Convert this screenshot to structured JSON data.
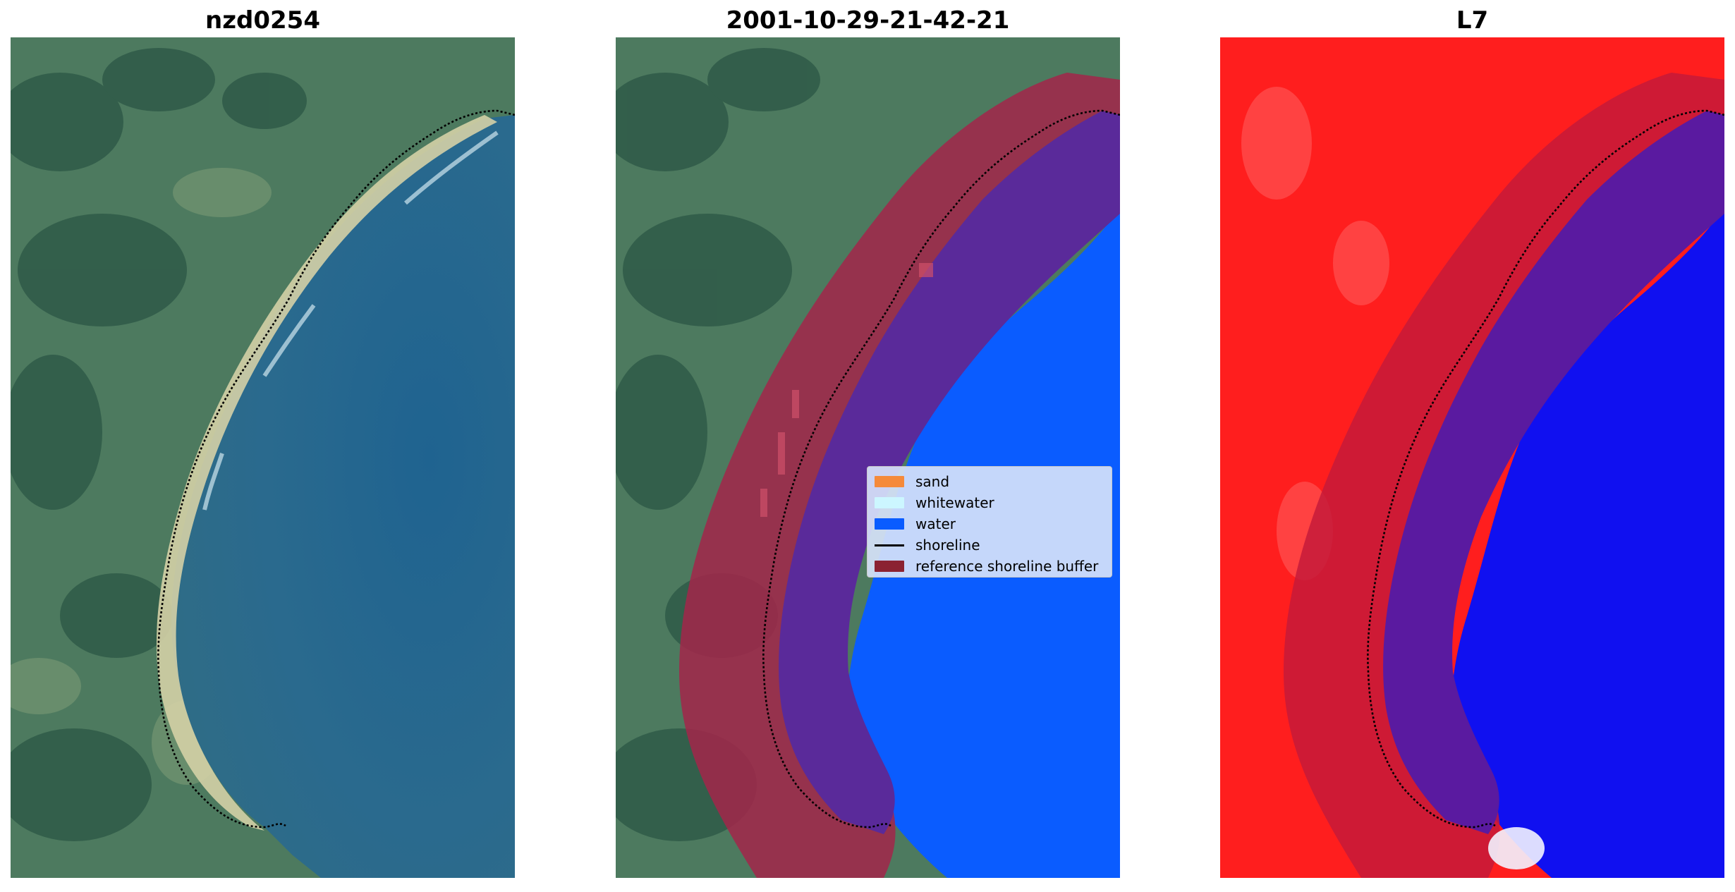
{
  "panels": [
    {
      "title": "nzd0254"
    },
    {
      "title": "2001-10-29-21-42-21"
    },
    {
      "title": "L7"
    }
  ],
  "legend": {
    "items": [
      {
        "label": "sand",
        "color": "#f58a3a",
        "kind": "patch"
      },
      {
        "label": "whitewater",
        "color": "#ccf6ff",
        "kind": "patch"
      },
      {
        "label": "water",
        "color": "#0a5cff",
        "kind": "patch"
      },
      {
        "label": "shoreline",
        "color": "#000000",
        "kind": "line"
      },
      {
        "label": "reference shoreline buffer",
        "color": "#8b2232",
        "kind": "patch"
      }
    ]
  },
  "colors": {
    "land": "#4e7a62",
    "water_rgb": "#215f86",
    "beach": "#d9d3aa",
    "classified_water": "#0a5cff",
    "buffer_purple": "#5a2a9a",
    "buffer_red": "#a3264a",
    "index_land": "#ff1e1e",
    "index_water": "#1010f0"
  }
}
